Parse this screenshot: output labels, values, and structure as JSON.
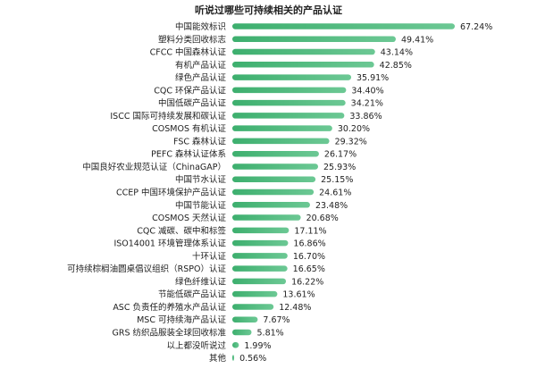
{
  "chart_data": {
    "type": "bar",
    "orientation": "horizontal",
    "title": "听说过哪些可持续相关的产品认证",
    "xlabel": "",
    "ylabel": "",
    "categories": [
      "中国能效标识",
      "塑料分类回收标志",
      "CFCC 中国森林认证",
      "有机产品认证",
      "绿色产品认证",
      "CQC 环保产品认证",
      "中国低碳产品认证",
      "ISCC 国际可持续发展和碳认证",
      "COSMOS 有机认证",
      "FSC 森林认证",
      "PEFC 森林认证体系",
      "中国良好农业规范认证（ChinaGAP）",
      "中国节水认证",
      "CCEP 中国环境保护产品认证",
      "中国节能认证",
      "COSMOS 天然认证",
      "CQC 减碳、碳中和标签",
      "ISO14001 环境管理体系认证",
      "十环认证",
      "可持续棕榈油圆桌倡议组织（RSPO）认证",
      "绿色纤维认证",
      "节能低碳产品认证",
      "ASC 负责任的养殖水产品认证",
      "MSC 可持续海产品认证",
      "GRS 纺织品服装全球回收标准",
      "以上都没听说过",
      "其他"
    ],
    "values": [
      67.24,
      49.41,
      43.14,
      42.85,
      35.91,
      34.4,
      34.21,
      33.86,
      30.2,
      29.32,
      26.17,
      25.93,
      25.15,
      24.61,
      23.48,
      20.68,
      17.11,
      16.86,
      16.7,
      16.65,
      16.22,
      13.61,
      12.48,
      7.67,
      5.81,
      1.99,
      0.56
    ],
    "value_labels": [
      "67.24%",
      "49.41%",
      "43.14%",
      "42.85%",
      "35.91%",
      "34.40%",
      "34.21%",
      "33.86%",
      "30.20%",
      "29.32%",
      "26.17%",
      "25.93%",
      "25.15%",
      "24.61%",
      "23.48%",
      "20.68%",
      "17.11%",
      "16.86%",
      "16.70%",
      "16.65%",
      "16.22%",
      "13.61%",
      "12.48%",
      "7.67%",
      "5.81%",
      "1.99%",
      "0.56%"
    ],
    "unit": "%",
    "xlim": [
      0,
      67.24
    ],
    "grid": false,
    "legend": "none",
    "bar_color": "#3daf6e",
    "bar_color_light": "#6cc894"
  }
}
